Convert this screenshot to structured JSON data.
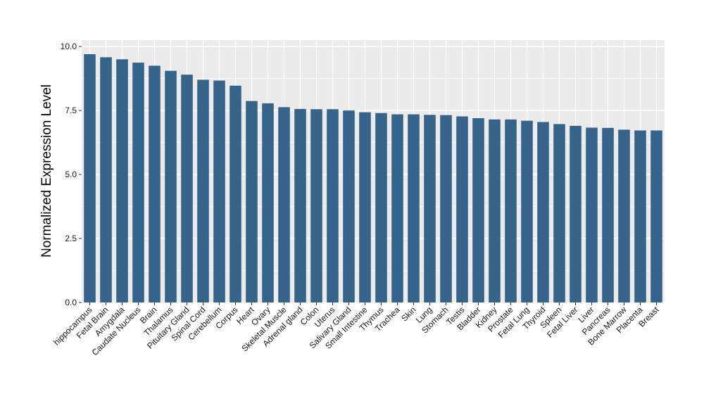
{
  "chart_data": {
    "type": "bar",
    "ylabel": "Normalized Expression Level",
    "ylim": [
      0,
      10.25
    ],
    "yticks": [
      "0.0",
      "2.5",
      "5.0",
      "7.5",
      "10.0"
    ],
    "ytick_values": [
      0,
      2.5,
      5.0,
      7.5,
      10.0
    ],
    "grid": true,
    "colors": {
      "bar": "#35638a",
      "panel": "#ebebeb",
      "grid": "#ffffff"
    },
    "categories": [
      "hippocampus",
      "Fetal Brain",
      "Amygdala",
      "Caudate Nucleus",
      "Brain",
      "Thalamus",
      "Pituitary Gland",
      "Spinal Cord",
      "Cerebellum",
      "Corpus",
      "Heart",
      "Ovary",
      "Skeletal Muscle",
      "Adrenal gland",
      "Colon",
      "Uterus",
      "Salivary Gland",
      "Small Intestine",
      "Thymus",
      "Trachea",
      "Skin",
      "Lung",
      "Stomach",
      "Testis",
      "Bladder",
      "Kidney",
      "Prostate",
      "Fetal Lung",
      "Thyroid",
      "Spleen",
      "Fetal Liver",
      "Liver",
      "Pancreas",
      "Bone Marrow",
      "Placenta",
      "Breast"
    ],
    "values": [
      9.7,
      9.58,
      9.5,
      9.37,
      9.25,
      9.05,
      8.9,
      8.7,
      8.67,
      8.47,
      7.87,
      7.78,
      7.63,
      7.56,
      7.55,
      7.55,
      7.5,
      7.43,
      7.4,
      7.35,
      7.35,
      7.33,
      7.32,
      7.27,
      7.2,
      7.15,
      7.15,
      7.1,
      7.05,
      6.97,
      6.9,
      6.83,
      6.82,
      6.75,
      6.72,
      6.72
    ]
  }
}
